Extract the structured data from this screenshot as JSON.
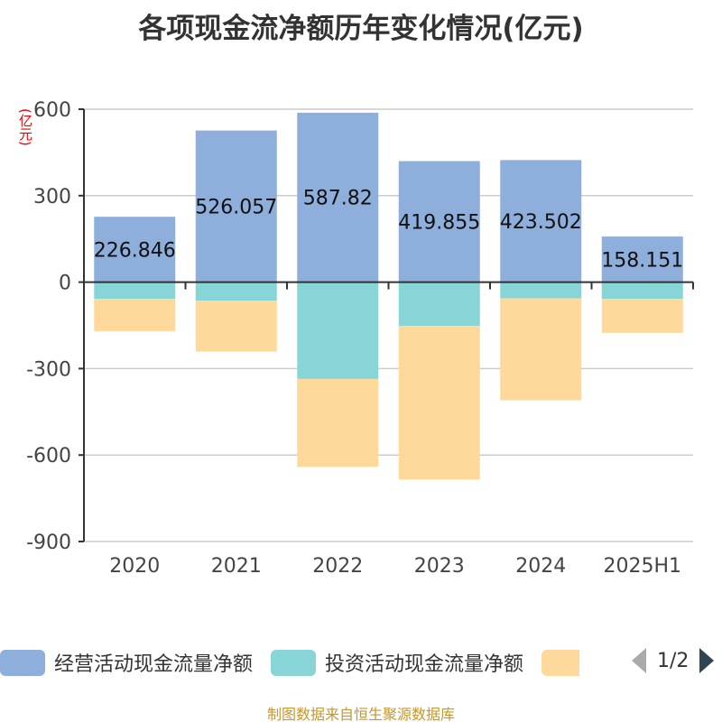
{
  "chart_data": {
    "type": "bar",
    "stacked": true,
    "title": "各项现金流净额历年变化情况(亿元)",
    "ylabel": "(亿元)",
    "categories": [
      "2020",
      "2021",
      "2022",
      "2023",
      "2024",
      "2025H1"
    ],
    "ylim": [
      -900,
      600
    ],
    "yticks": [
      600,
      300,
      0,
      -300,
      -600,
      -900
    ],
    "ytick_labels": [
      "600",
      "300",
      "0",
      "-300",
      "-600",
      "-900"
    ],
    "grid": true,
    "legend_position": "bottom",
    "series": [
      {
        "name": "经营活动现金流量净额",
        "color": "#8eaedb",
        "values": [
          226.846,
          526.057,
          587.82,
          419.855,
          423.502,
          158.151
        ],
        "labels": [
          "226.846",
          "526.057",
          "587.82",
          "419.855",
          "423.502",
          "158.151"
        ]
      },
      {
        "name": "投资活动现金流量净额",
        "color": "#88d5d8",
        "values": [
          -58,
          -64,
          -336,
          -152,
          -56,
          -58
        ]
      },
      {
        "name": "",
        "color": "#fed99b",
        "values": [
          -112,
          -177,
          -305,
          -533,
          -354,
          -118
        ]
      }
    ]
  },
  "legend": {
    "page": "1/2"
  },
  "source": "制图数据来自恒生聚源数据库"
}
